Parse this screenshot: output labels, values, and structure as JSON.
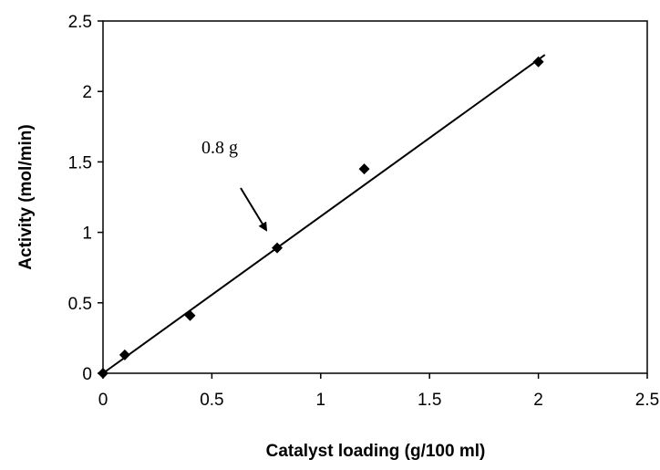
{
  "chart_data": {
    "type": "scatter",
    "title": "",
    "xlabel": "Catalyst loading (g/100 ml)",
    "ylabel": "Activity (mol/min)",
    "xlim": [
      0,
      2.5
    ],
    "ylim": [
      0,
      2.5
    ],
    "x_ticks": [
      "0",
      "0.5",
      "1",
      "1.5",
      "2",
      "2.5"
    ],
    "y_ticks": [
      "0",
      "0.5",
      "1",
      "1.5",
      "2",
      "2.5"
    ],
    "grid": false,
    "legend": "none",
    "marker": "diamond",
    "series": [
      {
        "points": [
          {
            "x": 0,
            "y": 0
          },
          {
            "x": 0.1,
            "y": 0.13
          },
          {
            "x": 0.4,
            "y": 0.41
          },
          {
            "x": 0.8,
            "y": 0.89
          },
          {
            "x": 1.2,
            "y": 1.45
          },
          {
            "x": 2.0,
            "y": 2.21
          }
        ]
      }
    ],
    "trendline": {
      "x_start": 0,
      "y_start": 0,
      "x_end": 2.03,
      "y_end": 2.26
    },
    "annotations": [
      {
        "text": "0.8 g",
        "points_to": {
          "x": 0.8,
          "y": 0.89
        }
      }
    ],
    "colors": {
      "marker": "#000000",
      "line": "#000000",
      "axis": "#000000"
    }
  }
}
